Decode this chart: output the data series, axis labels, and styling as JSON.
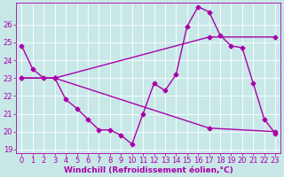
{
  "line1": {
    "x": [
      0,
      1,
      2,
      3,
      4,
      5,
      6,
      7,
      8,
      9,
      10,
      11,
      12,
      13,
      14,
      15,
      16,
      17,
      18,
      19,
      20,
      21,
      22,
      23
    ],
    "y": [
      24.8,
      23.5,
      23.0,
      23.0,
      21.8,
      21.3,
      20.7,
      20.1,
      20.1,
      19.8,
      19.3,
      21.0,
      22.7,
      22.3,
      23.2,
      25.9,
      27.0,
      26.7,
      25.4,
      24.8,
      24.7,
      22.7,
      20.7,
      19.9
    ]
  },
  "line2": {
    "x": [
      0,
      3,
      17,
      23
    ],
    "y": [
      23.0,
      23.0,
      25.3,
      25.3
    ]
  },
  "line3": {
    "x": [
      0,
      3,
      17,
      23
    ],
    "y": [
      23.0,
      23.0,
      20.2,
      20.0
    ]
  },
  "color": "#aa00aa",
  "bg_color": "#c8e8e8",
  "grid_color": "#aad4d4",
  "xlim": [
    -0.5,
    23.5
  ],
  "ylim": [
    18.8,
    27.2
  ],
  "yticks": [
    19,
    20,
    21,
    22,
    23,
    24,
    25,
    26
  ],
  "xticks": [
    0,
    1,
    2,
    3,
    4,
    5,
    6,
    7,
    8,
    9,
    10,
    11,
    12,
    13,
    14,
    15,
    16,
    17,
    18,
    19,
    20,
    21,
    22,
    23
  ],
  "xlabel": "Windchill (Refroidissement éolien,°C)",
  "xlabel_fontsize": 6.5,
  "tick_fontsize": 6,
  "marker": "D",
  "markersize": 2.5,
  "linewidth": 1.0
}
